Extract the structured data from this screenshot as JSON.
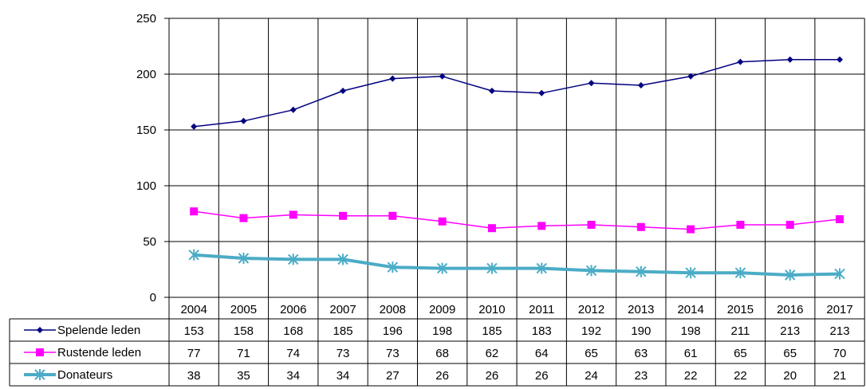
{
  "chart_data": {
    "type": "line",
    "title": "",
    "xlabel": "",
    "ylabel": "",
    "categories": [
      "2004",
      "2005",
      "2006",
      "2007",
      "2008",
      "2009",
      "2010",
      "2011",
      "2012",
      "2013",
      "2014",
      "2015",
      "2016",
      "2017"
    ],
    "ylim": [
      0,
      250
    ],
    "yticks": [
      0,
      50,
      100,
      150,
      200,
      250
    ],
    "grid": true,
    "legend_placement": "data-table-left",
    "series": [
      {
        "name": "Spelende leden",
        "values": [
          153,
          158,
          168,
          185,
          196,
          198,
          185,
          183,
          192,
          190,
          198,
          211,
          213,
          213
        ],
        "color": "#000080",
        "marker": "diamond"
      },
      {
        "name": "Rustende leden",
        "values": [
          77,
          71,
          74,
          73,
          73,
          68,
          62,
          64,
          65,
          63,
          61,
          65,
          65,
          70
        ],
        "color": "#FF00FF",
        "marker": "square"
      },
      {
        "name": "Donateurs",
        "values": [
          38,
          35,
          34,
          34,
          27,
          26,
          26,
          26,
          24,
          23,
          22,
          22,
          20,
          21
        ],
        "color": "#4BACC6",
        "marker": "star"
      }
    ]
  }
}
